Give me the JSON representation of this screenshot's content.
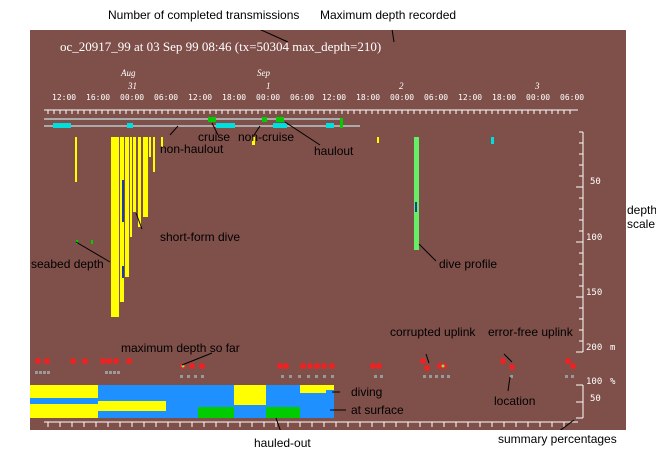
{
  "header_title": "oc_20917_99 at 03 Sep 99 08:46 (tx=50304 max_depth=210)",
  "months": [
    {
      "id": "aug",
      "text": "Aug"
    },
    {
      "id": "sep",
      "text": "Sep"
    }
  ],
  "days": [
    {
      "id": "d31",
      "text": "31"
    },
    {
      "id": "d1",
      "text": "1"
    },
    {
      "id": "d2",
      "text": "2"
    },
    {
      "id": "d3",
      "text": "3"
    }
  ],
  "time_labels": [
    "12:00",
    "16:00",
    "00:00",
    "06:00",
    "12:00",
    "18:00",
    "00:00",
    "06:00",
    "12:00",
    "18:00",
    "00:00",
    "06:00",
    "12:00",
    "18:00",
    "00:00",
    "06:00"
  ],
  "depth_scale": {
    "labels": [
      "50",
      "100",
      "150",
      "200"
    ],
    "unit": "m"
  },
  "percent_scale": {
    "labels": [
      "100",
      "50"
    ],
    "unit": "%"
  },
  "annotations": {
    "completed_transmissions": "Number of completed transmissions",
    "maximum_depth_recorded": "Maximum depth recorded",
    "non_haulout": "non-haulout",
    "cruise": "cruise",
    "non_cruise": "non-cruise",
    "haulout": "haulout",
    "seabed_depth": "seabed depth",
    "short_form_dive": "short-form dive",
    "dive_profile": "dive profile",
    "depth_scale": "depth scale",
    "corrupted_uplink": "corrupted uplink",
    "error_free_uplink": "error-free uplink",
    "maximum_depth_so_far": "maximum depth so far",
    "location": "location",
    "diving": "diving",
    "at_surface": "at surface",
    "hauled_out": "hauled-out",
    "summary_percentages": "summary percentages"
  },
  "colors": {
    "background": "#7f4f4a",
    "dive": "#ffff00",
    "dive_profile": "#66ee66",
    "cruise": "#00dddd",
    "haulout": "#00cc00",
    "diving_summary": "#ffff00",
    "surface_summary": "#1e90ff",
    "hauled_out_summary": "#00cc00",
    "uplink": "#ee2222",
    "location_marker": "#999999"
  }
}
